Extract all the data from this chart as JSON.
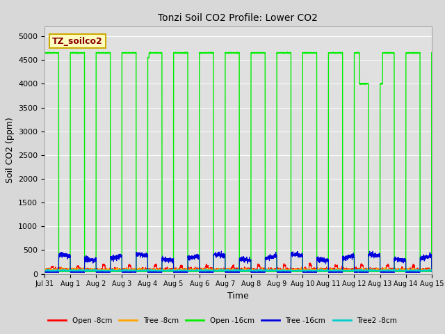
{
  "title": "Tonzi Soil CO2 Profile: Lower CO2",
  "xlabel": "Time",
  "ylabel": "Soil CO2 (ppm)",
  "ylim": [
    0,
    5200
  ],
  "yticks": [
    0,
    500,
    1000,
    1500,
    2000,
    2500,
    3000,
    3500,
    4000,
    4500,
    5000
  ],
  "fig_bg_color": "#d8d8d8",
  "plot_bg_color": "#e0e0e0",
  "series": [
    {
      "name": "Open -8cm",
      "color": "#ff0000",
      "linewidth": 0.8
    },
    {
      "name": "Tree -8cm",
      "color": "#ffa500",
      "linewidth": 0.8
    },
    {
      "name": "Open -16cm",
      "color": "#00ee00",
      "linewidth": 1.0
    },
    {
      "name": "Tree -16cm",
      "color": "#0000dd",
      "linewidth": 0.8
    },
    {
      "name": "Tree2 -8cm",
      "color": "#00cccc",
      "linewidth": 0.8
    }
  ],
  "watermark": "TZ_soilco2",
  "xtick_labels": [
    "Jul 31",
    "Aug 1",
    "Aug 2",
    "Aug 3",
    "Aug 4",
    "Aug 5",
    "Aug 6",
    "Aug 7",
    "Aug 8",
    "Aug 9",
    "Aug 10",
    "Aug 11",
    "Aug 12",
    "Aug 13",
    "Aug 14",
    "Aug 15"
  ],
  "xtick_positions": [
    0,
    1,
    2,
    3,
    4,
    5,
    6,
    7,
    8,
    9,
    10,
    11,
    12,
    13,
    14,
    15
  ],
  "open16_high": 4650,
  "open16_low": 50,
  "open16_duty_high": 0.55,
  "open16_duty_low": 0.45,
  "tree16_high": 380,
  "tree16_low": 30
}
